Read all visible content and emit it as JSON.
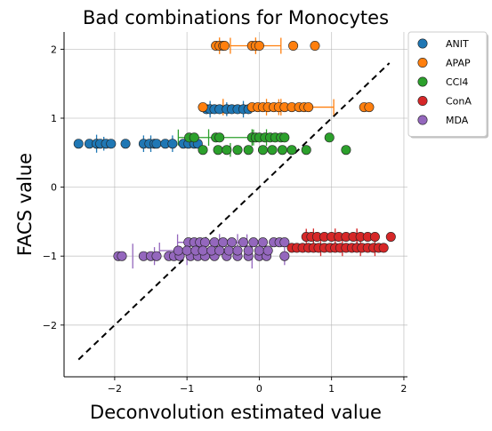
{
  "chart_data": {
    "type": "scatter",
    "title": "Bad combinations for Monocytes",
    "xlabel": "Deconvolution estimated value",
    "ylabel": "FACS value",
    "xlim": [
      -2.7,
      2.05
    ],
    "ylim": [
      -2.75,
      2.25
    ],
    "xticks": [
      -2,
      -1,
      0,
      1,
      2
    ],
    "yticks": [
      -2,
      -1,
      0,
      1,
      2
    ],
    "xtick_labels": [
      "−2",
      "−1",
      "0",
      "1",
      "2"
    ],
    "ytick_labels": [
      "−2",
      "−1",
      "0",
      "1",
      "2"
    ],
    "grid": true,
    "legend_position": "outside-top-right",
    "diagonal": {
      "x": [
        -2.5,
        1.8
      ],
      "y": [
        -2.5,
        1.8
      ],
      "style": "dashed",
      "color": "#000000"
    },
    "series": [
      {
        "name": "ANIT",
        "color": "#1f77b4",
        "y": 0.63,
        "x": [
          -2.5,
          -2.35,
          -2.25,
          -2.2,
          -2.12,
          -2.05,
          -1.85,
          -1.6,
          -1.52,
          -1.45,
          -1.42,
          -1.3,
          -1.2,
          -1.05,
          -0.98,
          -0.9,
          -0.85
        ],
        "errorbars": [
          {
            "x": -2.25,
            "y": 0.63,
            "half": 0.13,
            "dir": "v"
          },
          {
            "x": -2.15,
            "y": 0.63,
            "half": 0.1,
            "dir": "v"
          },
          {
            "x": -1.6,
            "y": 0.63,
            "half": 0.12,
            "dir": "v"
          },
          {
            "x": -1.5,
            "y": 0.63,
            "half": 0.12,
            "dir": "v"
          },
          {
            "x": -1.2,
            "y": 0.63,
            "half": 0.12,
            "dir": "v"
          }
        ],
        "y2": 1.13,
        "x2": [
          -0.73,
          -0.68,
          -0.62,
          -0.55,
          -0.45,
          -0.38,
          -0.3,
          -0.22,
          -0.15
        ],
        "errorbars2": [
          {
            "x": -0.68,
            "y": 1.13,
            "half": 0.12,
            "dir": "v"
          },
          {
            "x": -0.45,
            "y": 1.13,
            "half": 0.1,
            "dir": "v"
          },
          {
            "x": -0.22,
            "y": 1.13,
            "half": 0.12,
            "dir": "v"
          }
        ]
      },
      {
        "name": "APAP",
        "color": "#ff7f0e",
        "y": 2.05,
        "x": [
          -0.6,
          -0.55,
          -0.5,
          -0.48,
          -0.1,
          -0.05,
          0.0,
          0.47,
          0.77
        ],
        "errorbars": [
          {
            "x": -0.55,
            "y": 2.05,
            "half": 0.12,
            "dir": "v"
          },
          {
            "x": -0.05,
            "y": 2.05,
            "half": 0.12,
            "dir": "v"
          },
          {
            "x": -0.05,
            "y": 2.05,
            "half": 0.35,
            "dir": "h"
          }
        ],
        "y2": 1.16,
        "x2": [
          -0.78,
          -0.1,
          -0.02,
          0.05,
          0.12,
          0.2,
          0.27,
          0.35,
          0.45,
          0.55,
          0.62,
          0.68,
          1.45,
          1.52
        ],
        "errorbars2": [
          {
            "x": -0.5,
            "y": 1.16,
            "half": 0.12,
            "dir": "v"
          },
          {
            "x": 0.1,
            "y": 1.16,
            "half": 0.12,
            "dir": "v"
          },
          {
            "x": 0.3,
            "y": 1.16,
            "half": 0.12,
            "dir": "v"
          },
          {
            "x": 0.65,
            "y": 1.16,
            "half": 0.38,
            "dir": "h"
          }
        ]
      },
      {
        "name": "CCl4",
        "color": "#2ca02c",
        "y": 0.72,
        "x": [
          -0.97,
          -0.9,
          -0.6,
          -0.55,
          -0.1,
          -0.05,
          0.0,
          0.08,
          0.15,
          0.22,
          0.3,
          0.35,
          0.97
        ],
        "errorbars": [
          {
            "x": -0.7,
            "y": 0.72,
            "half": 0.12,
            "dir": "v"
          },
          {
            "x": -0.1,
            "y": 0.72,
            "half": 0.12,
            "dir": "v"
          },
          {
            "x": 0.1,
            "y": 0.72,
            "half": 0.12,
            "dir": "v"
          },
          {
            "x": -0.6,
            "y": 0.72,
            "half": 0.52,
            "dir": "h"
          }
        ],
        "y2": 0.54,
        "x2": [
          -0.78,
          -0.57,
          -0.45,
          -0.3,
          -0.15,
          0.05,
          0.18,
          0.32,
          0.45,
          0.65,
          1.2
        ],
        "errorbars2": [
          {
            "x": -0.4,
            "y": 0.54,
            "half": 0.1,
            "dir": "v"
          }
        ]
      },
      {
        "name": "ConA",
        "color": "#d62728",
        "y": -0.72,
        "x": [
          0.65,
          0.72,
          0.8,
          0.9,
          1.0,
          1.1,
          1.2,
          1.3,
          1.4,
          1.5,
          1.6,
          1.82
        ],
        "errorbars": [
          {
            "x": 0.75,
            "y": -0.72,
            "half": 0.12,
            "dir": "v"
          },
          {
            "x": 1.05,
            "y": -0.72,
            "half": 0.12,
            "dir": "v"
          },
          {
            "x": 1.35,
            "y": -0.72,
            "half": 0.12,
            "dir": "v"
          },
          {
            "x": 1.0,
            "y": -0.72,
            "half": 0.35,
            "dir": "h"
          }
        ],
        "y2": -0.88,
        "x2": [
          0.45,
          0.52,
          0.6,
          0.68,
          0.75,
          0.82,
          0.9,
          0.98,
          1.05,
          1.12,
          1.2,
          1.28,
          1.35,
          1.42,
          1.5,
          1.58,
          1.65,
          1.72
        ],
        "errorbars2": [
          {
            "x": 0.85,
            "y": -0.88,
            "half": 0.12,
            "dir": "v"
          },
          {
            "x": 1.15,
            "y": -0.88,
            "half": 0.12,
            "dir": "v"
          },
          {
            "x": 1.4,
            "y": -0.88,
            "half": 0.12,
            "dir": "v"
          },
          {
            "x": 1.6,
            "y": -0.88,
            "half": 0.12,
            "dir": "v"
          }
        ]
      },
      {
        "name": "MDA",
        "color": "#9467bd",
        "y": -1.0,
        "x": [
          -1.95,
          -1.9,
          -1.6,
          -1.5,
          -1.42,
          -1.25,
          -1.18,
          -1.1,
          -0.95,
          -0.85,
          -0.75,
          -0.62,
          -0.45,
          -0.3,
          -0.15,
          0.0,
          0.1,
          0.35
        ],
        "errorbars": [
          {
            "x": -1.75,
            "y": -1.0,
            "half": 0.18,
            "dir": "v"
          },
          {
            "x": -1.45,
            "y": -1.0,
            "half": 0.13,
            "dir": "v"
          },
          {
            "x": -1.0,
            "y": -1.0,
            "half": 0.13,
            "dir": "v"
          },
          {
            "x": -0.1,
            "y": -1.0,
            "half": 0.18,
            "dir": "v"
          },
          {
            "x": 0.35,
            "y": -1.0,
            "half": 0.13,
            "dir": "v"
          }
        ],
        "y2": -0.8,
        "x2": [
          -0.98,
          -0.9,
          -0.82,
          -0.75,
          -0.62,
          -0.5,
          -0.38,
          -0.22,
          -0.08,
          0.05,
          0.2,
          0.28,
          0.35
        ],
        "errorbars2": [
          {
            "x": -0.55,
            "y": -0.8,
            "half": 0.12,
            "dir": "v"
          },
          {
            "x": -0.3,
            "y": -0.8,
            "half": 0.12,
            "dir": "v"
          },
          {
            "x": -0.65,
            "y": -0.8,
            "half": 0.48,
            "dir": "h"
          }
        ],
        "y3": -0.92,
        "x3": [
          -1.12,
          -1.0,
          -0.88,
          -0.78,
          -0.66,
          -0.55,
          -0.42,
          -0.3,
          -0.15,
          0.0,
          0.12
        ],
        "errorbars3": [
          {
            "x": -0.9,
            "y": -0.92,
            "half": 0.48,
            "dir": "h"
          }
        ]
      }
    ]
  }
}
